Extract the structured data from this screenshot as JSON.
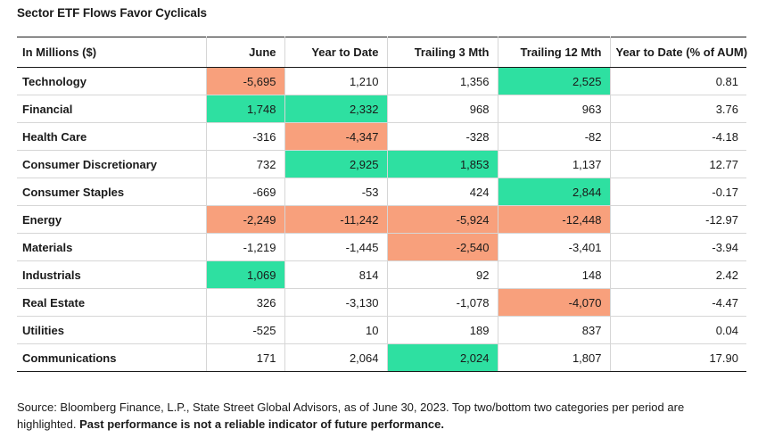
{
  "title": "Sector ETF Flows Favor Cyclicals",
  "chart_data": {
    "type": "table",
    "title": "Sector ETF Flows Favor Cyclicals",
    "columns": [
      "In Millions ($)",
      "June",
      "Year to Date",
      "Trailing 3 Mth",
      "Trailing 12 Mth",
      "Year to Date (% of AUM)"
    ],
    "rows": [
      {
        "sector": "Technology",
        "values": [
          "-5,695",
          "1,210",
          "1,356",
          "2,525",
          "0.81"
        ],
        "highlight": [
          "bottom",
          "",
          "",
          "top",
          ""
        ]
      },
      {
        "sector": "Financial",
        "values": [
          "1,748",
          "2,332",
          "968",
          "963",
          "3.76"
        ],
        "highlight": [
          "top",
          "top",
          "",
          "",
          ""
        ]
      },
      {
        "sector": "Health Care",
        "values": [
          "-316",
          "-4,347",
          "-328",
          "-82",
          "-4.18"
        ],
        "highlight": [
          "",
          "bottom",
          "",
          "",
          ""
        ]
      },
      {
        "sector": "Consumer Discretionary",
        "values": [
          "732",
          "2,925",
          "1,853",
          "1,137",
          "12.77"
        ],
        "highlight": [
          "",
          "top",
          "top",
          "",
          ""
        ]
      },
      {
        "sector": "Consumer Staples",
        "values": [
          "-669",
          "-53",
          "424",
          "2,844",
          "-0.17"
        ],
        "highlight": [
          "",
          "",
          "",
          "top",
          ""
        ]
      },
      {
        "sector": "Energy",
        "values": [
          "-2,249",
          "-11,242",
          "-5,924",
          "-12,448",
          "-12.97"
        ],
        "highlight": [
          "bottom",
          "bottom",
          "bottom",
          "bottom",
          ""
        ]
      },
      {
        "sector": "Materials",
        "values": [
          "-1,219",
          "-1,445",
          "-2,540",
          "-3,401",
          "-3.94"
        ],
        "highlight": [
          "",
          "",
          "bottom",
          "",
          ""
        ]
      },
      {
        "sector": "Industrials",
        "values": [
          "1,069",
          "814",
          "92",
          "148",
          "2.42"
        ],
        "highlight": [
          "top",
          "",
          "",
          "",
          ""
        ]
      },
      {
        "sector": "Real Estate",
        "values": [
          "326",
          "-3,130",
          "-1,078",
          "-4,070",
          "-4.47"
        ],
        "highlight": [
          "",
          "",
          "",
          "bottom",
          ""
        ]
      },
      {
        "sector": "Utilities",
        "values": [
          "-525",
          "10",
          "189",
          "837",
          "0.04"
        ],
        "highlight": [
          "",
          "",
          "",
          "",
          ""
        ]
      },
      {
        "sector": "Communications",
        "values": [
          "171",
          "2,064",
          "2,024",
          "1,807",
          "17.90"
        ],
        "highlight": [
          "",
          "",
          "top",
          "",
          ""
        ]
      }
    ]
  },
  "colors": {
    "top": "#2ee0a1",
    "bottom": "#f8a07c"
  },
  "footnote": {
    "source": "Source: Bloomberg Finance, L.P., State Street Global Advisors, as of June 30, 2023. Top two/bottom two categories per period are highlighted.",
    "disclaimer": "Past performance is not a reliable indicator of future performance."
  }
}
